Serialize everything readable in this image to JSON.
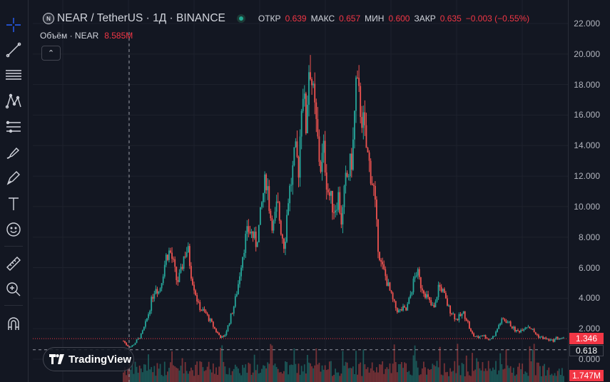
{
  "toolbar": {
    "tools": [
      {
        "name": "crosshair-tool",
        "icon": "crosshair-icon",
        "active": true
      },
      {
        "name": "trend-line-tool",
        "icon": "trend-line-icon"
      },
      {
        "name": "horizontal-lines-tool",
        "icon": "horizontal-lines-icon"
      },
      {
        "name": "pattern-tool",
        "icon": "pattern-icon"
      },
      {
        "name": "fib-tool",
        "icon": "fib-retracement-icon"
      },
      {
        "name": "brush-tool",
        "icon": "brush-icon"
      },
      {
        "name": "pen-tool",
        "icon": "pen-icon"
      },
      {
        "name": "text-tool",
        "icon": "text-icon"
      },
      {
        "name": "emoji-tool",
        "icon": "emoji-icon"
      },
      {
        "name": "ruler-tool",
        "icon": "ruler-icon"
      },
      {
        "name": "zoom-tool",
        "icon": "zoom-in-icon"
      },
      {
        "name": "magnet-tool",
        "icon": "magnet-icon"
      }
    ]
  },
  "legend": {
    "symbol_badge": "N",
    "title": "NEAR / TetherUS · 1Д · BINANCE",
    "ohlc": [
      {
        "key": "ОТКР",
        "value": "0.639"
      },
      {
        "key": "МАКС",
        "value": "0.657"
      },
      {
        "key": "МИН",
        "value": "0.600"
      },
      {
        "key": "ЗАКР",
        "value": "0.635"
      }
    ],
    "change": "−0.003 (−0.55%)"
  },
  "volume_legend": {
    "label": "Объём · NEAR",
    "value": "8.585M"
  },
  "collapse_icon": "chevron-up-icon",
  "price_axis": {
    "ticks": [
      "22.000",
      "20.000",
      "18.000",
      "16.000",
      "14.000",
      "12.000",
      "10.000",
      "8.000",
      "6.000",
      "4.000",
      "2.000",
      "0.000"
    ],
    "last_price": "1.346",
    "crosshair_price": "0.618",
    "volume_tag": "1.747M"
  },
  "logo": {
    "text": "TradingView",
    "icon": "tradingview-logo-icon"
  },
  "colors": {
    "up": "#26a69a",
    "down": "#ef5350",
    "background": "#131722",
    "grid": "#1e222d",
    "accent": "#2962ff"
  },
  "chart_data": {
    "type": "candlestick",
    "symbol": "NEAR / TetherUS",
    "interval": "1Д",
    "exchange": "BINANCE",
    "ylim": [
      0,
      22.5
    ],
    "y_ticks": [
      0,
      2,
      4,
      6,
      8,
      10,
      12,
      14,
      16,
      18,
      20,
      22
    ],
    "last_price": 1.346,
    "crosshair_price": 0.618,
    "close_path": [
      1.2,
      0.9,
      0.8,
      1.0,
      1.3,
      1.6,
      2.2,
      3.0,
      4.0,
      4.8,
      4.4,
      5.6,
      6.8,
      7.1,
      6.2,
      5.0,
      5.6,
      6.9,
      7.2,
      5.5,
      4.5,
      3.5,
      3.2,
      3.0,
      2.6,
      2.2,
      1.8,
      1.5,
      1.4,
      2.0,
      2.8,
      3.6,
      4.8,
      6.5,
      7.8,
      8.5,
      8.2,
      7.6,
      8.8,
      10.8,
      12.0,
      9.5,
      8.7,
      10.2,
      8.6,
      7.4,
      10.5,
      11.8,
      13.5,
      12.5,
      18.4,
      15.2,
      20.0,
      17.2,
      15.0,
      12.5,
      13.7,
      11.2,
      10.4,
      9.8,
      10.8,
      8.9,
      11.5,
      12.3,
      13.3,
      18.0,
      16.8,
      15.5,
      13.6,
      12.4,
      11.0,
      7.8,
      6.2,
      5.6,
      4.8,
      4.0,
      3.4,
      3.1,
      3.3,
      3.2,
      4.0,
      5.0,
      5.8,
      4.9,
      4.5,
      4.0,
      3.5,
      3.3,
      4.8,
      4.6,
      3.9,
      3.3,
      3.0,
      2.6,
      2.8,
      3.0,
      2.6,
      1.8,
      1.5,
      1.4,
      1.6,
      1.5,
      1.3,
      1.4,
      1.7,
      2.3,
      2.6,
      2.5,
      2.3,
      2.0,
      1.8,
      1.9,
      2.1,
      2.2,
      2.0,
      1.7,
      1.5,
      1.4,
      1.35,
      1.25,
      1.2,
      1.4,
      1.35,
      1.346
    ]
  }
}
